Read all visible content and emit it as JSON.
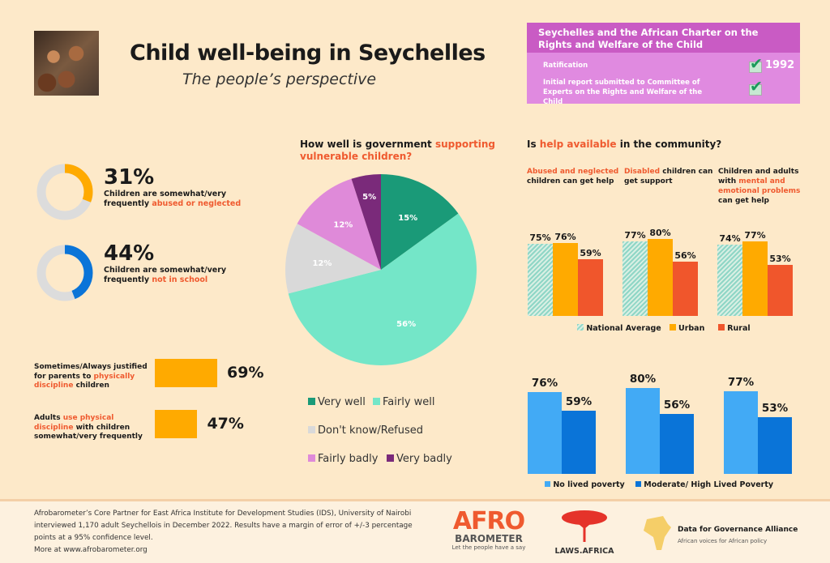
{
  "header": {
    "title": "Child well-being in Seychelles",
    "subtitle": "The people’s perspective"
  },
  "charter": {
    "title": "Seychelles and the African Charter on the Rights and Welfare of the Child",
    "rows": [
      {
        "label": "Ratification",
        "checked": true,
        "value": "1992"
      },
      {
        "label": "Initial report submitted to Committee of Experts on the Rights and Welfare of the Child",
        "checked": true
      }
    ]
  },
  "colors": {
    "orange": "#ffaa00",
    "red": "#f0562c",
    "blue": "#0a74d8",
    "lightblue": "#42aaf5",
    "teal": "#1a9a78",
    "mint": "#74e6c8",
    "grey": "#d9d9d9",
    "pink": "#df8ad9",
    "purple": "#7a2a7a",
    "highlight": "#ef5a2f"
  },
  "stats": [
    {
      "value": 31,
      "pct": "31%",
      "text": "Children are somewhat/very frequently ",
      "highlight": "abused or neglected",
      "color": "#ffaa00"
    },
    {
      "value": 44,
      "pct": "44%",
      "text": "Children are somewhat/very frequently ",
      "highlight": "not in school",
      "color": "#0a74d8"
    }
  ],
  "chart_data": [
    {
      "type": "bar",
      "title": "",
      "categories": [
        "Sometimes/Always justified for parents to physically discipline children",
        "Adults use physical discipline with children somewhat/very frequently"
      ],
      "values": [
        69,
        47
      ],
      "labels": [
        "69%",
        "47%"
      ],
      "texts": [
        {
          "a": "Sometimes/Always justified for parents to ",
          "h": "physically discipline",
          "b": " children"
        },
        {
          "a": "Adults ",
          "h": "use physical discipline",
          "b": " with children somewhat/very frequently"
        }
      ]
    },
    {
      "type": "pie",
      "title_a": "How well is government ",
      "title_h": "supporting vulnerable children?",
      "categories": [
        "Very well",
        "Fairly well",
        "Don't know/Refused",
        "Fairly badly",
        "Very badly"
      ],
      "values": [
        15,
        56,
        12,
        12,
        5
      ],
      "labels": [
        "15%",
        "56%",
        "12%",
        "12%",
        "5%"
      ],
      "colors": [
        "#1a9a78",
        "#74e6c8",
        "#d9d9d9",
        "#df8ad9",
        "#7a2a7a"
      ]
    },
    {
      "type": "bar",
      "title_a": "Is ",
      "title_h": "help available",
      "title_b": " in the community?",
      "groups": [
        {
          "a": "",
          "h": "Abused and neglected",
          "b": " children can get help"
        },
        {
          "a": "",
          "h": "Disabled",
          "b": " children can get support"
        },
        {
          "a": "Children and adults with ",
          "h": "mental and emotional problems",
          "b": " can get help"
        }
      ],
      "series": [
        {
          "name": "National Average",
          "values": [
            75,
            77,
            74
          ]
        },
        {
          "name": "Urban",
          "values": [
            76,
            80,
            77
          ]
        },
        {
          "name": "Rural",
          "values": [
            59,
            56,
            53
          ]
        }
      ],
      "legend_placement": "bottom"
    },
    {
      "type": "bar",
      "title": "",
      "categories": [
        "Abused and neglected",
        "Disabled",
        "Mental and emotional problems"
      ],
      "series": [
        {
          "name": "No lived poverty",
          "values": [
            76,
            80,
            77
          ]
        },
        {
          "name": "Moderate/ High Lived Poverty",
          "values": [
            59,
            56,
            53
          ]
        }
      ],
      "legend_placement": "bottom"
    }
  ],
  "footer": {
    "lines": [
      "Afrobarometer’s Core Partner for East Africa Institute for Development Studies (IDS), University of Nairobi",
      "interviewed 1,170 adult Seychellois in December 2022. Results have a margin of error of +/-3 percentage",
      "points at a 95% confidence level.",
      "More at www.afrobarometer.org"
    ],
    "afro_logo": "AFRO BAROMETER",
    "afro_tag": "Let the people have a say",
    "laws_logo": "LAWS.AFRICA",
    "dga_name": "Data for Governance Alliance",
    "dga_tag": "African voices for African policy"
  }
}
